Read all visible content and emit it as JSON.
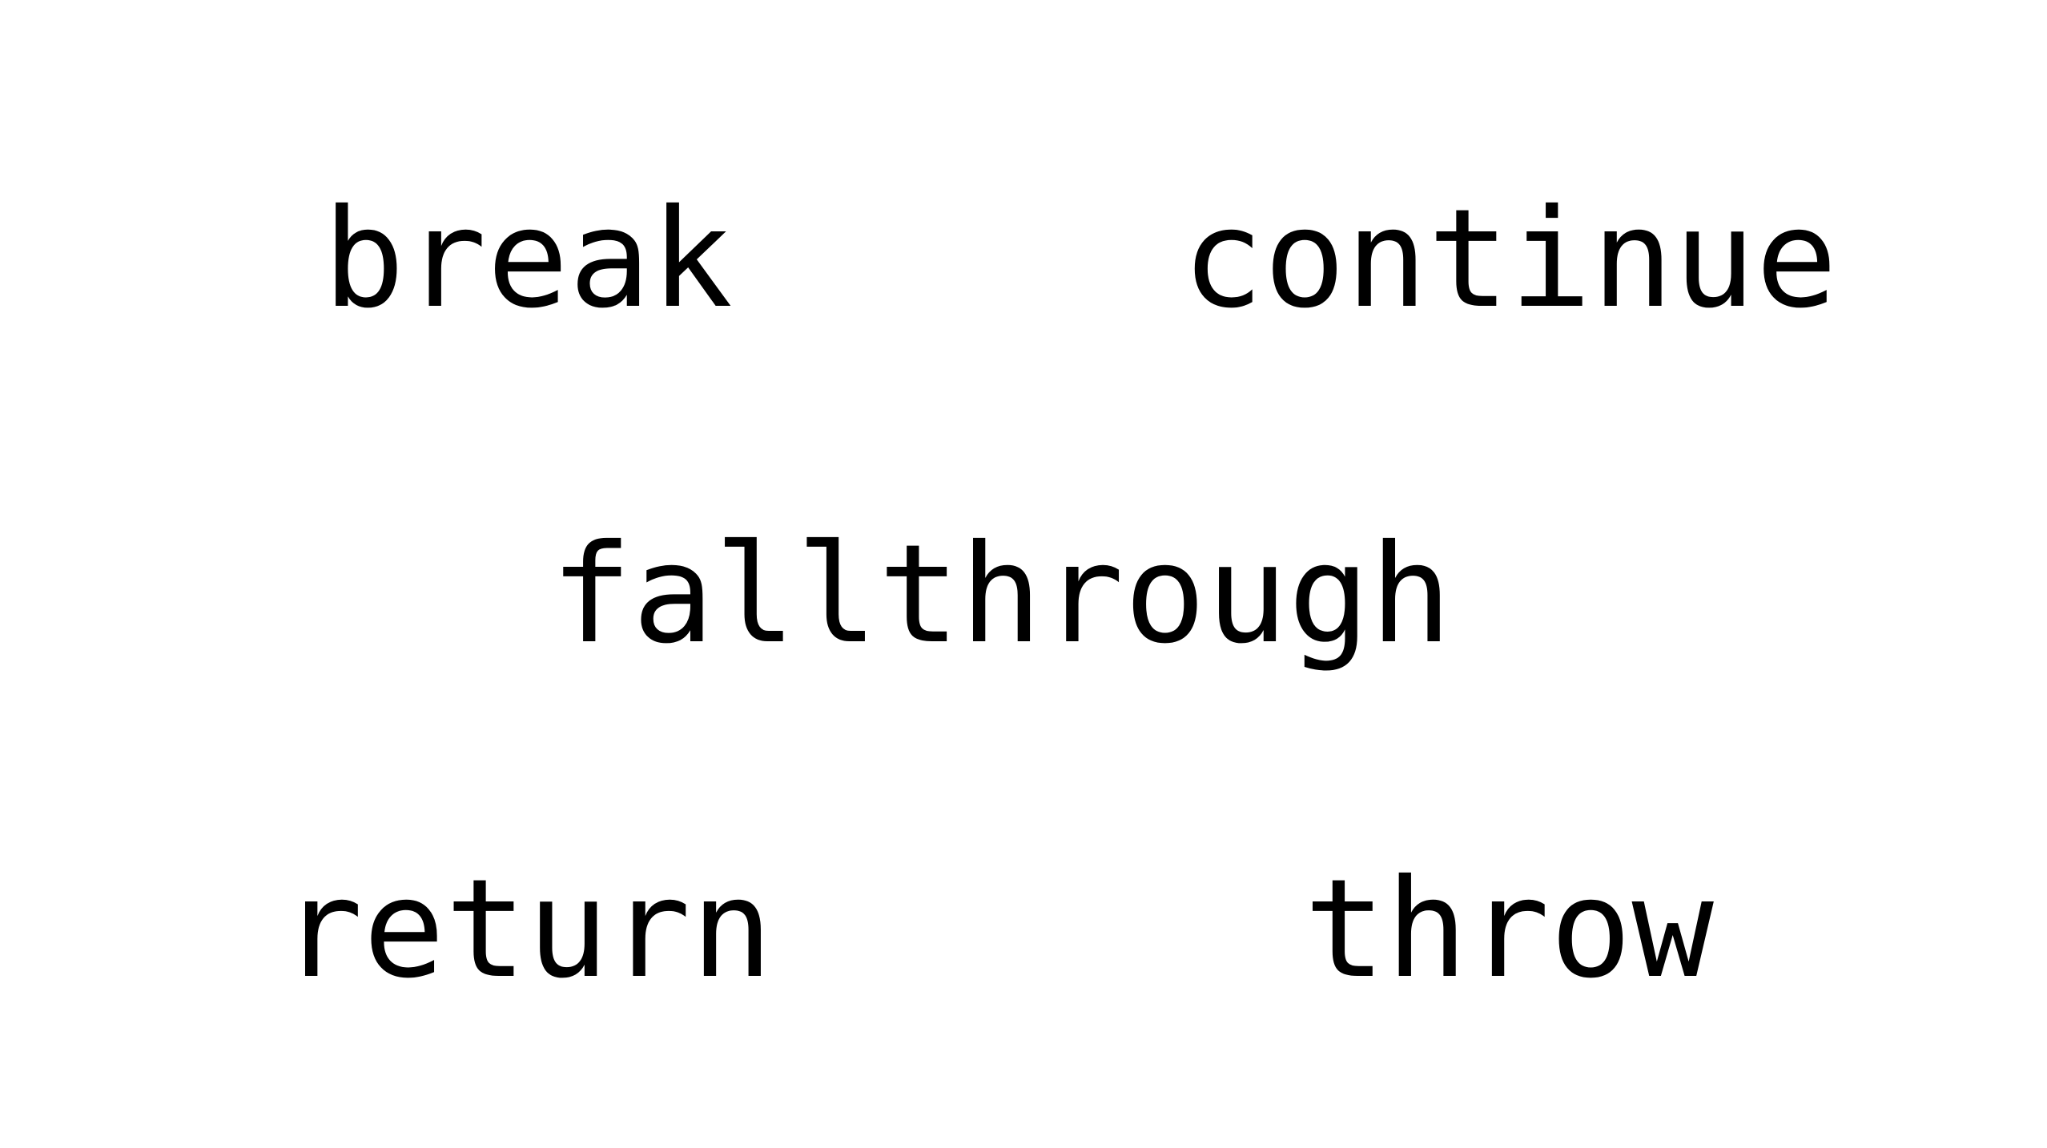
{
  "slide": {
    "keywords": {
      "break": "break",
      "continue": "continue",
      "fallthrough": "fallthrough",
      "return": "return",
      "throw": "throw"
    }
  },
  "colors": {
    "background": "#ffffff",
    "text": "#000000"
  }
}
